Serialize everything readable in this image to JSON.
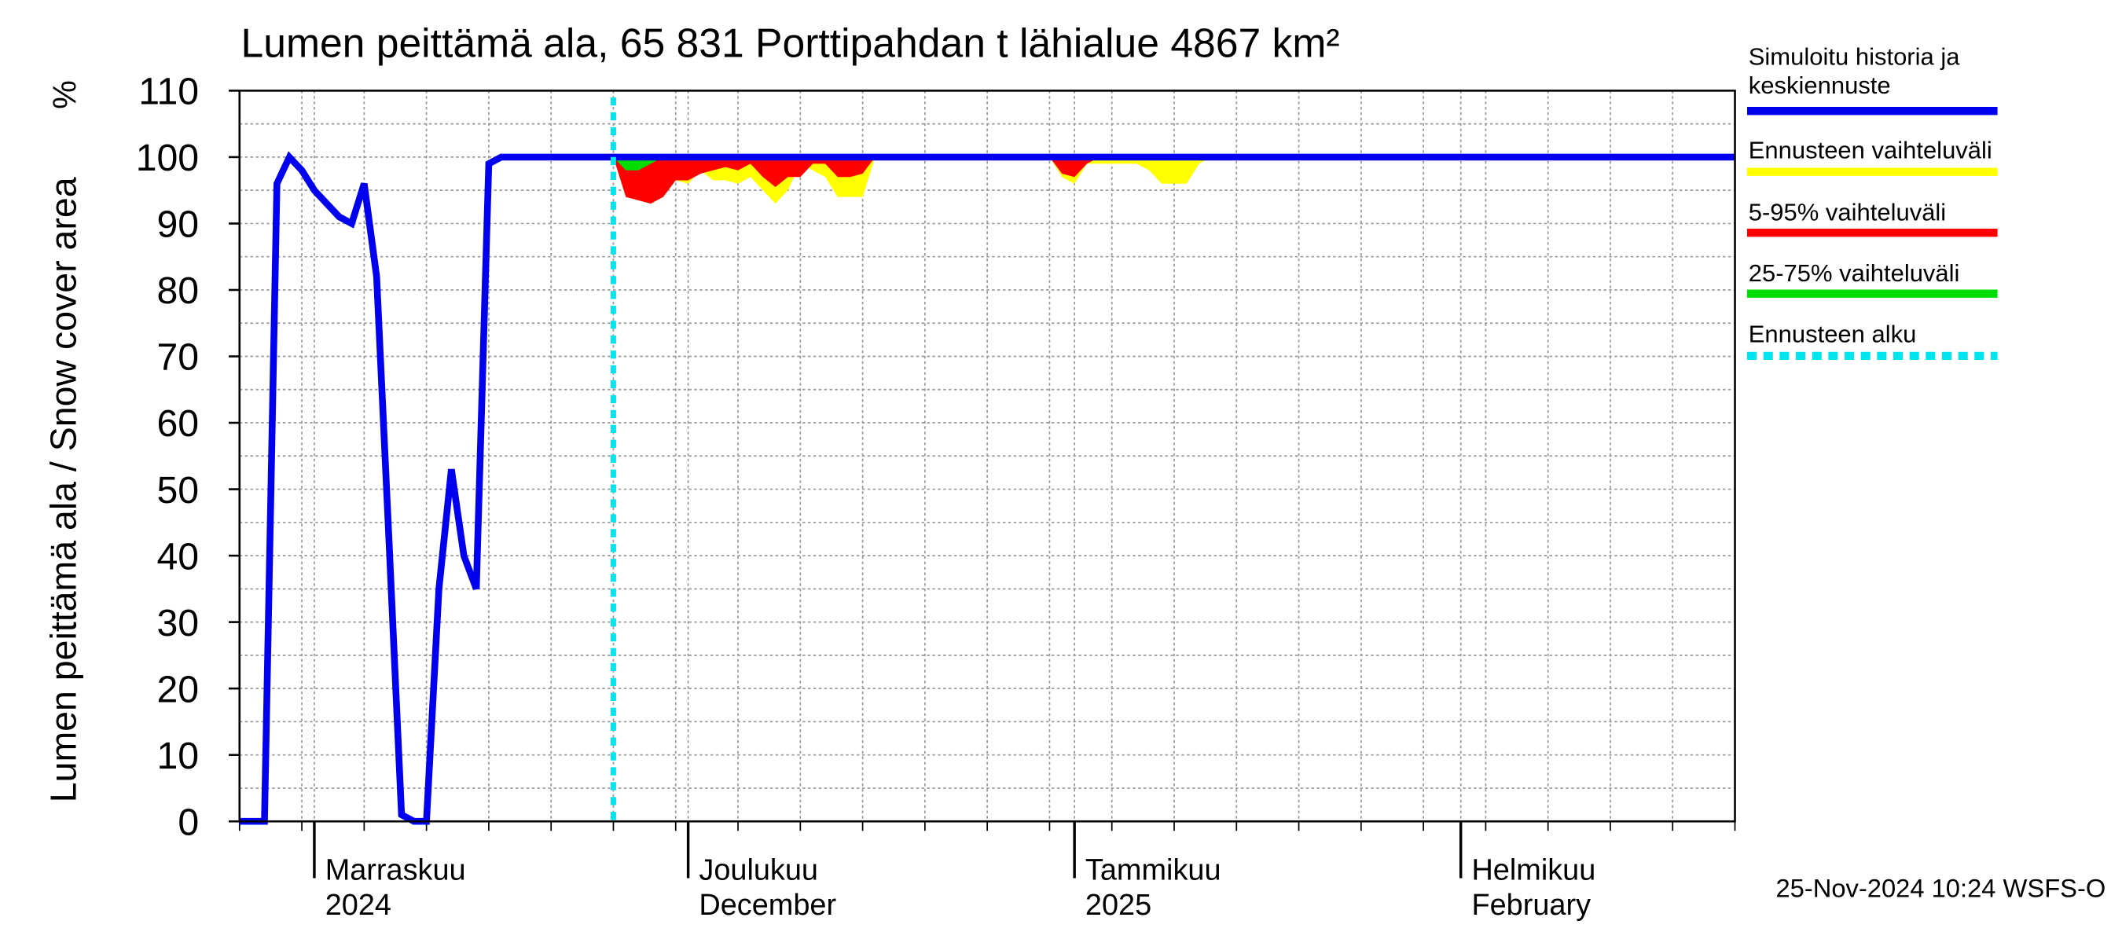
{
  "chart_data": {
    "type": "line",
    "title": "Lumen peittämä ala, 65 831 Porttipahdan t lähialue 4867 km²",
    "y_label": "Lumen peittämä ala / Snow cover area",
    "y_unit": "%",
    "timestamp": "25-Nov-2024 10:24 WSFS-O",
    "xlim": [
      "2024-10-26",
      "2025-02-23"
    ],
    "ylim": [
      0,
      110
    ],
    "yticks": [
      0,
      10,
      20,
      30,
      40,
      50,
      60,
      70,
      80,
      90,
      100,
      110
    ],
    "xticks": [
      {
        "value": "2024-11-01",
        "label": [
          "Marraskuu",
          "2024"
        ]
      },
      {
        "value": "2024-12-01",
        "label": [
          "Joulukuu",
          "December"
        ]
      },
      {
        "value": "2025-01-01",
        "label": [
          "Tammikuu",
          "2025"
        ]
      },
      {
        "value": "2025-02-01",
        "label": [
          "Helmikuu",
          "February"
        ]
      }
    ],
    "grid": true,
    "series": [
      {
        "name": "Simuloitu historia ja keskiennuste",
        "color": "#0000ee",
        "x": [
          "2024-10-26",
          "2024-10-28",
          "2024-10-29",
          "2024-10-30",
          "2024-10-31",
          "2024-11-01",
          "2024-11-02",
          "2024-11-03",
          "2024-11-04",
          "2024-11-05",
          "2024-11-06",
          "2024-11-07",
          "2024-11-08",
          "2024-11-09",
          "2024-11-10",
          "2024-11-11",
          "2024-11-12",
          "2024-11-13",
          "2024-11-14",
          "2024-11-15",
          "2024-11-16",
          "2025-02-23"
        ],
        "values": [
          0,
          0,
          96,
          100,
          98,
          95,
          93,
          91,
          90,
          96,
          82,
          42,
          1,
          0,
          0,
          35,
          53,
          40,
          35,
          99,
          100,
          100
        ]
      }
    ],
    "bands": [
      {
        "name": "Ennusteen vaihteluväli",
        "color": "#ffff00",
        "x": [
          "2024-11-25",
          "2024-11-26",
          "2024-11-27",
          "2024-11-28",
          "2024-11-29",
          "2024-11-30",
          "2024-12-01",
          "2024-12-02",
          "2024-12-03",
          "2024-12-04",
          "2024-12-05",
          "2024-12-06",
          "2024-12-07",
          "2024-12-08",
          "2024-12-09",
          "2024-12-10",
          "2024-12-11",
          "2024-12-12",
          "2024-12-13",
          "2024-12-14",
          "2024-12-15",
          "2024-12-16",
          "2024-12-30",
          "2024-12-31",
          "2025-01-01",
          "2025-01-02",
          "2025-01-03",
          "2025-01-04",
          "2025-01-05",
          "2025-01-06",
          "2025-01-07",
          "2025-01-08",
          "2025-01-09",
          "2025-01-10",
          "2025-01-11",
          "2025-01-12"
        ],
        "low": [
          100,
          94,
          93.5,
          93,
          94,
          96.5,
          96,
          98,
          96.5,
          96.5,
          96,
          97,
          95,
          93,
          95,
          99,
          98,
          97,
          94,
          94,
          94,
          100,
          100,
          97,
          96,
          99,
          99,
          99,
          99,
          99,
          98,
          96,
          96,
          96,
          99,
          100
        ],
        "high": [
          100,
          100,
          100,
          100,
          100,
          100,
          100,
          100,
          100,
          100,
          100,
          100,
          100,
          100,
          100,
          100,
          100,
          100,
          100,
          100,
          100,
          100,
          100,
          100,
          100,
          100,
          100,
          100,
          100,
          100,
          100,
          100,
          100,
          100,
          100,
          100
        ]
      },
      {
        "name": "5-95% vaihteluväli",
        "color": "#ff0000",
        "x": [
          "2024-11-25",
          "2024-11-26",
          "2024-11-27",
          "2024-11-28",
          "2024-11-29",
          "2024-11-30",
          "2024-12-01",
          "2024-12-02",
          "2024-12-03",
          "2024-12-04",
          "2024-12-05",
          "2024-12-06",
          "2024-12-07",
          "2024-12-08",
          "2024-12-09",
          "2024-12-10",
          "2024-12-11",
          "2024-12-12",
          "2024-12-13",
          "2024-12-14",
          "2024-12-15",
          "2024-12-16",
          "2024-12-30",
          "2024-12-31",
          "2025-01-01",
          "2025-01-02",
          "2025-01-03"
        ],
        "low": [
          100,
          94,
          93.5,
          93,
          94,
          96.5,
          96.5,
          97.5,
          98,
          98.5,
          98,
          99,
          97,
          95.5,
          97,
          97,
          99,
          99,
          97,
          97,
          97.5,
          100,
          100,
          97.5,
          97,
          99,
          100
        ],
        "high": [
          100,
          100,
          100,
          100,
          100,
          100,
          100,
          100,
          100,
          100,
          100,
          100,
          100,
          100,
          100,
          100,
          100,
          100,
          100,
          100,
          100,
          100,
          100,
          100,
          100,
          100,
          100
        ]
      },
      {
        "name": "25-75% vaihteluväli",
        "color": "#00dd00",
        "x": [
          "2024-11-25",
          "2024-11-26",
          "2024-11-27",
          "2024-11-28",
          "2024-11-29"
        ],
        "low": [
          100,
          98,
          98,
          99,
          100
        ],
        "high": [
          100,
          100,
          100,
          100,
          100
        ]
      }
    ],
    "forecast_start": {
      "name": "Ennusteen alku",
      "color": "#00e5ee",
      "x": "2024-11-25"
    }
  }
}
